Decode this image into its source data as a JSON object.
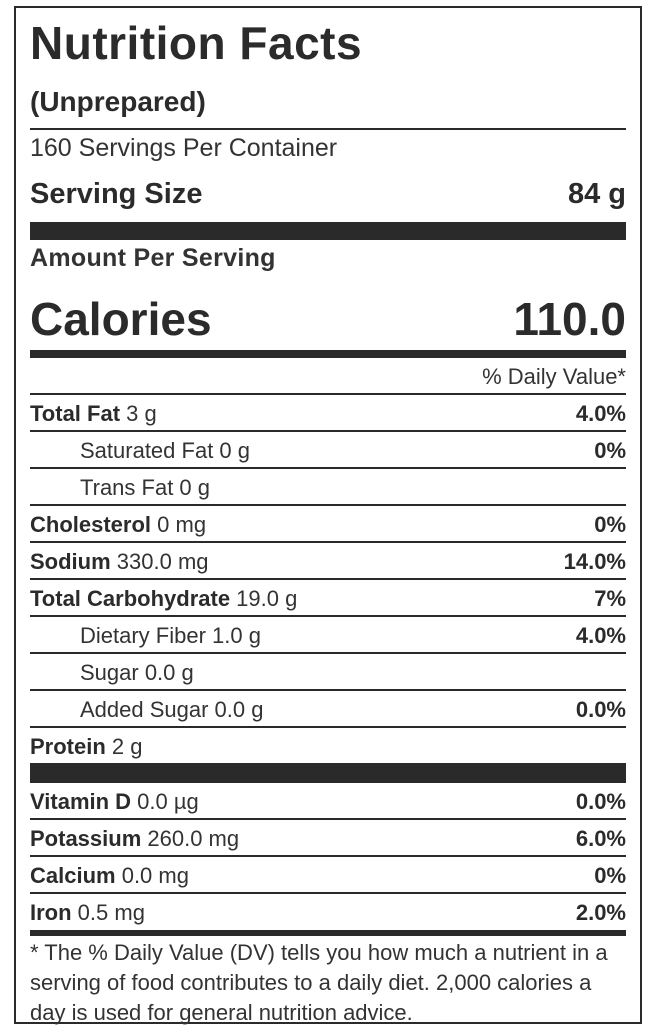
{
  "label": {
    "title": "Nutrition Facts",
    "subtitle": "(Unprepared)",
    "servings_per_container": "160 Servings Per Container",
    "serving_size_label": "Serving Size",
    "serving_size_value": "84 g",
    "amount_per_serving": "Amount Per Serving",
    "calories_label": "Calories",
    "calories_value": "110.0",
    "daily_value_header": "% Daily Value*",
    "nutrients": [
      {
        "name": "Total Fat",
        "amount": " 3 g",
        "dv": "4.0%"
      },
      {
        "name": "Saturated Fat 0 g",
        "amount": "",
        "dv": "0%"
      },
      {
        "name": "Trans Fat 0 g",
        "amount": "",
        "dv": ""
      },
      {
        "name": "Cholesterol",
        "amount": " 0 mg",
        "dv": "0%"
      },
      {
        "name": "Sodium",
        "amount": " 330.0 mg",
        "dv": "14.0%"
      },
      {
        "name": "Total Carbohydrate",
        "amount": " 19.0 g",
        "dv": "7%"
      },
      {
        "name": "Dietary Fiber 1.0 g",
        "amount": "",
        "dv": "4.0%"
      },
      {
        "name": "Sugar 0.0 g",
        "amount": "",
        "dv": ""
      },
      {
        "name": "Added Sugar 0.0 g",
        "amount": "",
        "dv": "0.0%"
      },
      {
        "name": "Protein",
        "amount": " 2 g",
        "dv": ""
      }
    ],
    "vitamins": [
      {
        "name": "Vitamin D",
        "amount": " 0.0 µg",
        "dv": "0.0%"
      },
      {
        "name": "Potassium",
        "amount": " 260.0 mg",
        "dv": "6.0%"
      },
      {
        "name": "Calcium",
        "amount": " 0.0 mg",
        "dv": "0%"
      },
      {
        "name": "Iron",
        "amount": " 0.5 mg",
        "dv": "2.0%"
      }
    ],
    "footnote": "* The % Daily Value (DV) tells you how much a nutrient in a serving of food contributes to a daily diet. 2,000 calories a day is used for general nutrition advice."
  }
}
